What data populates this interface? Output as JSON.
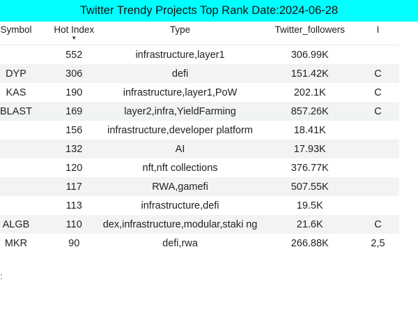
{
  "title": "Twitter Trendy Projects Top Rank Date:2024-06-28",
  "columns": [
    "Symbol",
    "Hot Index",
    "Type",
    "Twitter_followers",
    "I"
  ],
  "rows": [
    {
      "symbol": "",
      "hot_index": "552",
      "type": "infrastructure,layer1",
      "followers": "306.99K",
      "extra": ""
    },
    {
      "symbol": "DYP",
      "hot_index": "306",
      "type": "defi",
      "followers": "151.42K",
      "extra": "C"
    },
    {
      "symbol": "KAS",
      "hot_index": "190",
      "type": "infrastructure,layer1,PoW",
      "followers": "202.1K",
      "extra": "C"
    },
    {
      "symbol": "BLAST",
      "hot_index": "169",
      "type": "layer2,infra,YieldFarming",
      "followers": "857.26K",
      "extra": "C"
    },
    {
      "symbol": "",
      "hot_index": "156",
      "type": "infrastructure,developer platform",
      "followers": "18.41K",
      "extra": ""
    },
    {
      "symbol": "",
      "hot_index": "132",
      "type": "AI",
      "followers": "17.93K",
      "extra": ""
    },
    {
      "symbol": "",
      "hot_index": "120",
      "type": "nft,nft collections",
      "followers": "376.77K",
      "extra": ""
    },
    {
      "symbol": "",
      "hot_index": "117",
      "type": "RWA,gamefi",
      "followers": "507.55K",
      "extra": ""
    },
    {
      "symbol": "",
      "hot_index": "113",
      "type": "infrastructure,defi",
      "followers": "19.5K",
      "extra": ""
    },
    {
      "symbol": "ALGB",
      "hot_index": "110",
      "type": "dex,infrastructure,modular,staki ng",
      "followers": "21.6K",
      "extra": "C"
    },
    {
      "symbol": "MKR",
      "hot_index": "90",
      "type": "defi,rwa",
      "followers": "266.88K",
      "extra": "2,5"
    }
  ],
  "sort_icon": "sort-descending-icon",
  "edge_mark": ":",
  "colors": {
    "title_bg": "#00ffff",
    "stripe": "#f1f3f4"
  }
}
